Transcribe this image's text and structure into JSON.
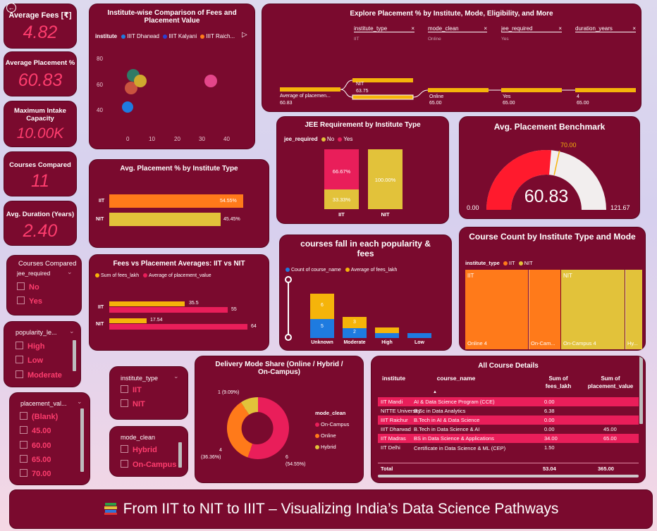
{
  "kpis": [
    {
      "label": "Average Fees [₹]",
      "value": "4.82"
    },
    {
      "label": "Average Placement %",
      "value": "60.83"
    },
    {
      "label": "Maximum Intake Capacity",
      "value": "10.00K"
    },
    {
      "label": "Courses Compared",
      "value": "11"
    },
    {
      "label": "Avg. Duration (Years)",
      "value": "2.40"
    }
  ],
  "scatter": {
    "title": "Institute-wise Comparison of Fees and Placement Value",
    "legend_label": "institute",
    "legend": [
      "IIIT Dharwad",
      "IIIT Kalyani",
      "IIIT Raich..."
    ],
    "y_ticks": [
      "80",
      "60",
      "40"
    ],
    "x_ticks": [
      "0",
      "10",
      "20",
      "30",
      "40"
    ]
  },
  "decomp": {
    "title": "Explore Placement % by Institute, Mode, Eligibility, and More",
    "filters": [
      {
        "label": "institute_type",
        "sub": "IIT"
      },
      {
        "label": "mode_clean",
        "sub": "Online"
      },
      {
        "label": "jee_required",
        "sub": "Yes"
      },
      {
        "label": "duration_years",
        "sub": ""
      }
    ],
    "root_label": "Average of placemen...",
    "root_value": "60.83",
    "nodes": [
      {
        "label": "NIT",
        "value": "63.75"
      },
      {
        "label": "Online",
        "value": "65.00"
      },
      {
        "label": "Yes",
        "value": "65.00"
      },
      {
        "label": "4",
        "value": "65.00"
      }
    ]
  },
  "placement_by_type": {
    "title": "Avg. Placement % by Institute Type",
    "bars": [
      {
        "label": "IIT",
        "value_label": "54.55%",
        "color": "#ff7a1a"
      },
      {
        "label": "NIT",
        "value_label": "45.45%",
        "color": "#e2c23a"
      }
    ]
  },
  "jee": {
    "title": "JEE Requirement by Institute Type",
    "legend_label": "jee_required",
    "legend": [
      {
        "name": "No",
        "color": "#e2c23a"
      },
      {
        "name": "Yes",
        "color": "#e91e5a"
      }
    ],
    "iit_yes": "66.67%",
    "iit_no": "33.33%",
    "nit_no": "100.00%",
    "cats": [
      "IIT",
      "NIT"
    ]
  },
  "gauge": {
    "title": "Avg. Placement Benchmark",
    "value": "60.83",
    "min": "0.00",
    "max": "121.67",
    "target": "70.00"
  },
  "fees_vs": {
    "title": "Fees vs Placement Averages: IIT vs NIT",
    "legend": [
      {
        "name": "Sum of fees_lakh",
        "color": "#f5b40a"
      },
      {
        "name": "Average of placement_value",
        "color": "#e91e5a"
      }
    ],
    "rows": [
      {
        "label": "IIT",
        "fees": "35.5",
        "placement": "55"
      },
      {
        "label": "NIT",
        "fees": "17.54",
        "placement": "64"
      }
    ]
  },
  "popularity": {
    "title": "courses fall in each popularity & fees",
    "legend": [
      {
        "name": "Count of course_name",
        "color": "#1e7be0"
      },
      {
        "name": "Average of fees_lakh",
        "color": "#f5b40a"
      }
    ],
    "cats": [
      "Unknown",
      "Moderate",
      "High",
      "Low"
    ],
    "unknown_top": "6",
    "unknown_bot": "5",
    "moderate_top": "3",
    "moderate_bot": "2"
  },
  "treemap": {
    "title": "Course Count by Institute Type and Mode",
    "legend_label": "institute_type",
    "legend": [
      {
        "name": "IIT",
        "color": "#ff7a1a"
      },
      {
        "name": "NIT",
        "color": "#e2c23a"
      }
    ],
    "iit": "IIT",
    "nit": "NIT",
    "iit_online": "Online 4",
    "iit_oncamp": "On-Cam...",
    "nit_oncamp": "On-Campus 4",
    "nit_hy": "Hy..."
  },
  "slicers": {
    "courses": {
      "title": "Courses Compared",
      "field": "jee_required",
      "items": [
        "No",
        "Yes"
      ]
    },
    "popularity": {
      "title": "popularity_le...",
      "items": [
        "High",
        "Low",
        "Moderate"
      ]
    },
    "placement": {
      "title": "placement_val...",
      "items": [
        "(Blank)",
        "45.00",
        "60.00",
        "65.00",
        "70.00"
      ]
    },
    "institute_type": {
      "title": "institute_type",
      "items": [
        "IIT",
        "NIT"
      ]
    },
    "mode_clean": {
      "title": "mode_clean",
      "items": [
        "Hybrid",
        "On-Campus"
      ]
    }
  },
  "donut": {
    "title": "Delivery Mode Share (Online / Hybrid / On-Campus)",
    "legend_label": "mode_clean",
    "legend": [
      {
        "name": "On-Campus",
        "color": "#e91e5a"
      },
      {
        "name": "Online",
        "color": "#ff7a1a"
      },
      {
        "name": "Hybrid",
        "color": "#e2c23a"
      }
    ],
    "lbl_hybrid": "1 (9.09%)",
    "lbl_online_a": "4",
    "lbl_online_b": "(36.36%)",
    "lbl_oncamp_a": "6",
    "lbl_oncamp_b": "(54.55%)"
  },
  "table": {
    "title": "All Course Details",
    "headers": [
      "institute",
      "course_name",
      "Sum of fees_lakh",
      "Sum of placement_value"
    ],
    "rows": [
      [
        "IIT Mandi",
        "AI & Data Science Program (CCE)",
        "0.00",
        ""
      ],
      [
        "NITTE University",
        "B.Sc in Data Analytics",
        "6.38",
        ""
      ],
      [
        "IIIT Raichur",
        "B.Tech in AI & Data Science",
        "0.00",
        ""
      ],
      [
        "IIIT Dharwad",
        "B.Tech in Data Science & AI",
        "0.00",
        "45.00"
      ],
      [
        "IIT Madras",
        "BS in Data Science & Applications",
        "34.00",
        "65.00"
      ],
      [
        "IIT Delhi",
        "Certificate in Data Science & ML (CEP)",
        "1.50",
        ""
      ]
    ],
    "total_label": "Total",
    "total_fees": "53.04",
    "total_place": "365.00"
  },
  "footer": {
    "title": "From IIT to NIT to IIIT – Visualizing India’s Data Science Pathways"
  }
}
